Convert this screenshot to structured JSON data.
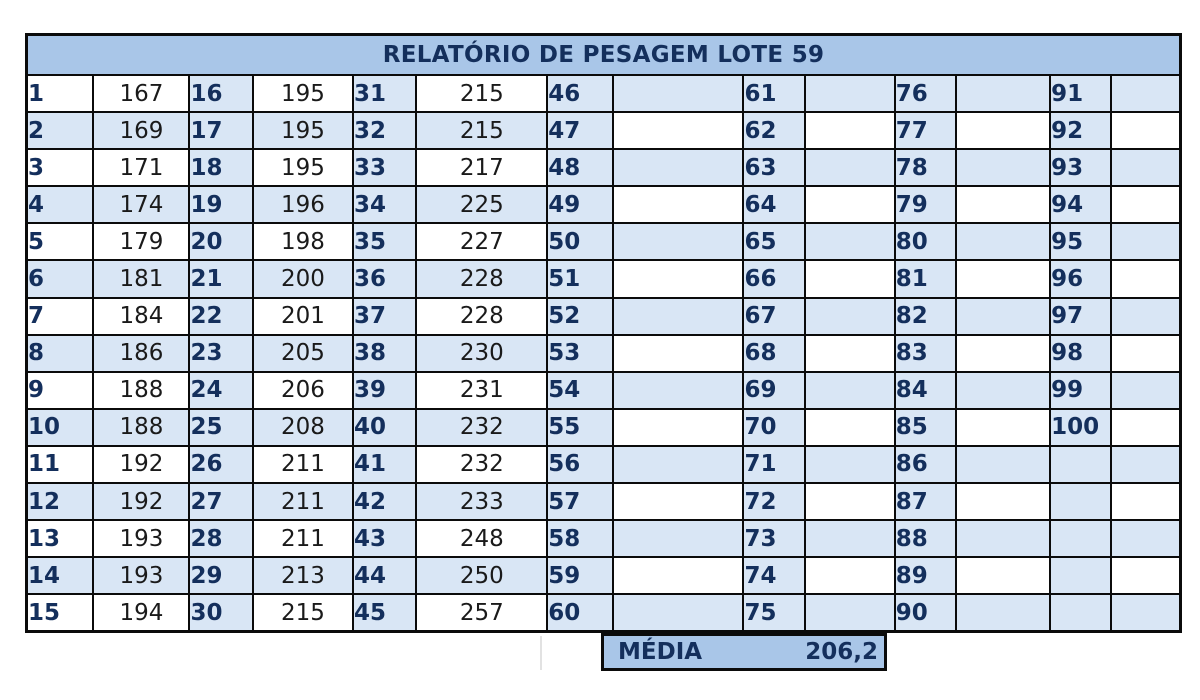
{
  "report": {
    "title": "RELATÓRIO DE PESAGEM LOTE 59",
    "columns": [
      {
        "start": 1,
        "values": [
          "167",
          "169",
          "171",
          "174",
          "179",
          "181",
          "184",
          "186",
          "188",
          "188",
          "192",
          "192",
          "193",
          "193",
          "194"
        ]
      },
      {
        "start": 16,
        "values": [
          "195",
          "195",
          "195",
          "196",
          "198",
          "200",
          "201",
          "205",
          "206",
          "208",
          "211",
          "211",
          "211",
          "213",
          "215"
        ]
      },
      {
        "start": 31,
        "values": [
          "215",
          "215",
          "217",
          "225",
          "227",
          "228",
          "228",
          "230",
          "231",
          "232",
          "232",
          "233",
          "248",
          "250",
          "257"
        ]
      },
      {
        "start": 46,
        "values": [
          "",
          "",
          "",
          "",
          "",
          "",
          "",
          "",
          "",
          "",
          "",
          "",
          "",
          "",
          ""
        ]
      },
      {
        "start": 61,
        "values": [
          "",
          "",
          "",
          "",
          "",
          "",
          "",
          "",
          "",
          "",
          "",
          "",
          "",
          "",
          ""
        ]
      },
      {
        "start": 76,
        "values": [
          "",
          "",
          "",
          "",
          "",
          "",
          "",
          "",
          "",
          "",
          "",
          "",
          "",
          "",
          ""
        ]
      },
      {
        "start": 91,
        "values": [
          "",
          "",
          "",
          "",
          "",
          "",
          "",
          "",
          "",
          "",
          "",
          "",
          "",
          "",
          ""
        ]
      }
    ]
  },
  "summary": {
    "label": "MÉDIA",
    "value": "206,2"
  },
  "colors": {
    "header_fill": "#a9c6e8",
    "band_fill": "#d9e6f5",
    "index_text": "#142f5c"
  }
}
